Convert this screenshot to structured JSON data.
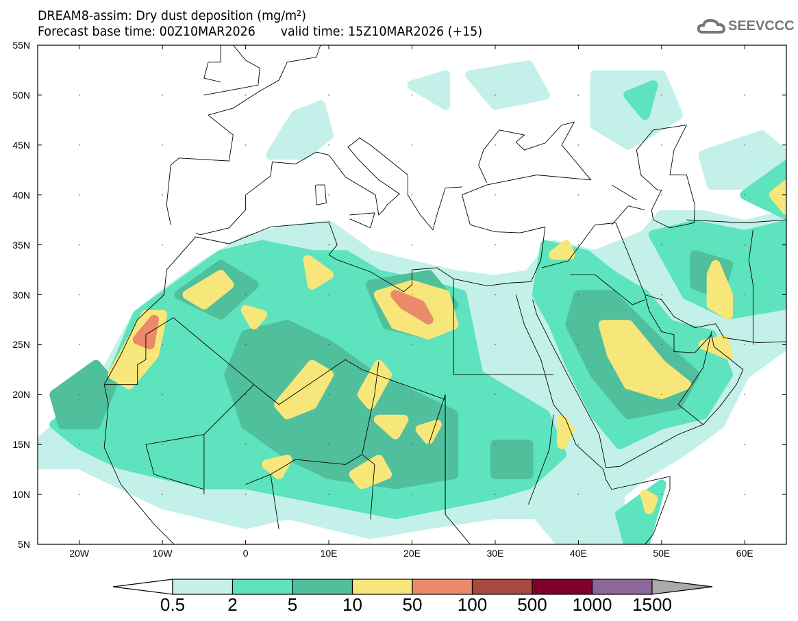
{
  "title": {
    "line1": "DREAM8-assim: Dry dust deposition (mg/m²)",
    "base_time": "Forecast base time: 00Z10MAR2026",
    "valid_time": "valid time: 15Z10MAR2026 (+15)"
  },
  "logo": {
    "text": "SEEVCCC"
  },
  "axes": {
    "lat_labels": [
      "55N",
      "50N",
      "45N",
      "40N",
      "35N",
      "30N",
      "25N",
      "20N",
      "15N",
      "10N",
      "5N"
    ],
    "lat_values": [
      55,
      50,
      45,
      40,
      35,
      30,
      25,
      20,
      15,
      10,
      5
    ],
    "lon_labels": [
      "20W",
      "10W",
      "0",
      "10E",
      "20E",
      "30E",
      "40E",
      "50E",
      "60E"
    ],
    "lon_values": [
      -20,
      -10,
      0,
      10,
      20,
      30,
      40,
      50,
      60
    ],
    "lon_range": [
      -25,
      65
    ],
    "lat_range": [
      5,
      55
    ]
  },
  "colorbar": {
    "labels": [
      "0.5",
      "2",
      "5",
      "10",
      "50",
      "100",
      "500",
      "1000",
      "1500"
    ],
    "colors": [
      "#c3f1e9",
      "#5de3bd",
      "#50bf9c",
      "#f7e67a",
      "#ea8a6a",
      "#a8483f",
      "#7f002b",
      "#8c6799"
    ],
    "over_color": "#aaaaaa"
  }
}
